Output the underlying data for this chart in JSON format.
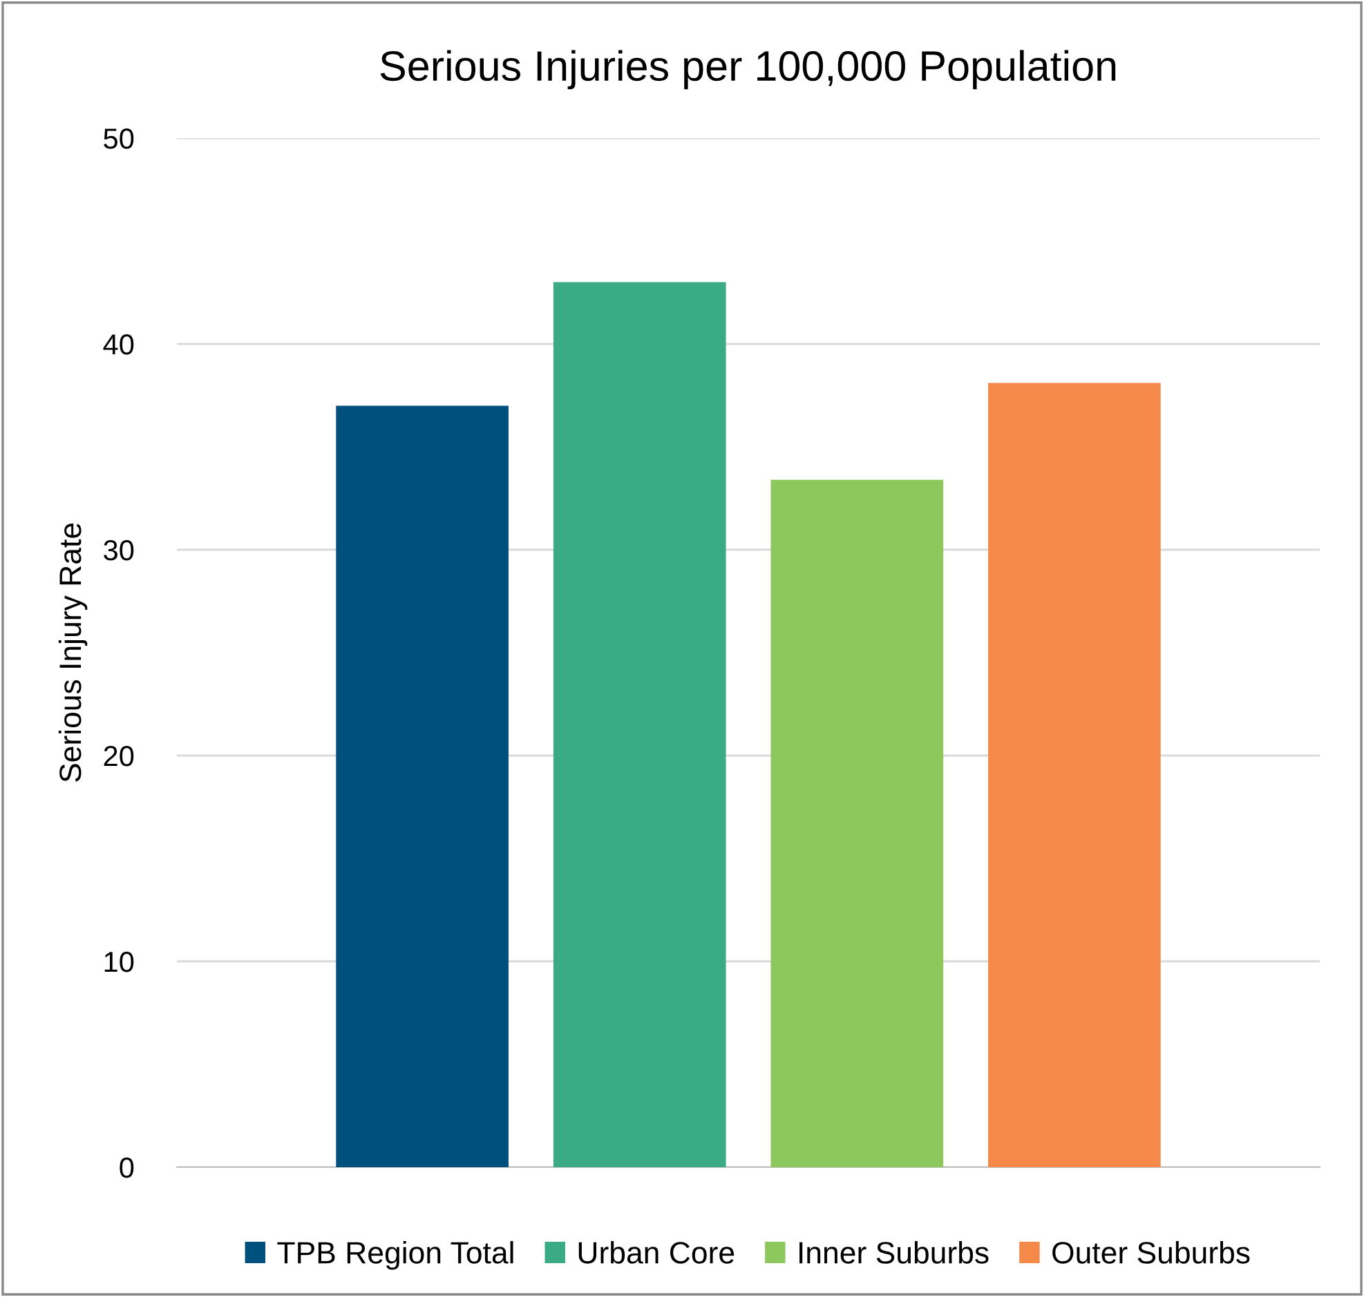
{
  "chart_data": {
    "type": "bar",
    "title": "Serious Injuries per 100,000 Population",
    "ylabel": "Serious Injury Rate",
    "categories": [
      null
    ],
    "series": [
      {
        "name": "TPB Region Total",
        "color": "#00507d",
        "values": [
          37
        ]
      },
      {
        "name": "Urban Core",
        "color": "#3aab84",
        "values": [
          43
        ]
      },
      {
        "name": "Inner Suburbs",
        "color": "#8cc85c",
        "values": [
          33.4
        ]
      },
      {
        "name": "Outer Suburbs",
        "color": "#f4894a",
        "values": [
          38.1
        ]
      }
    ],
    "ylim": [
      0,
      50
    ],
    "yticks": [
      0,
      10,
      20,
      30,
      40,
      50
    ],
    "grid": "y",
    "legend": "bottom"
  }
}
